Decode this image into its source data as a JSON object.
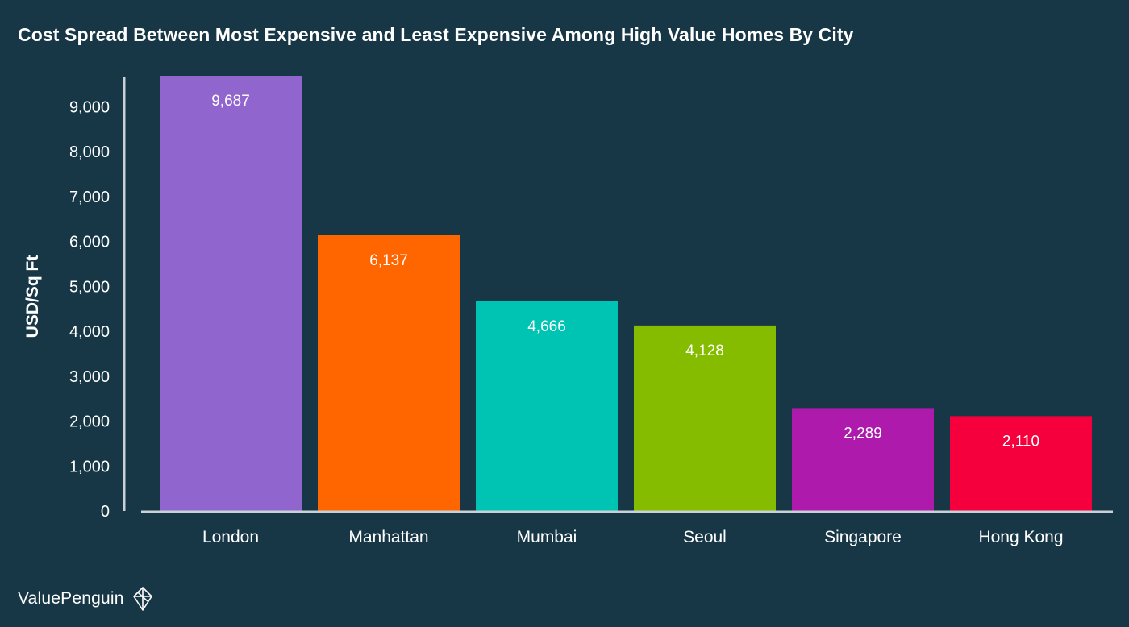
{
  "chart_data": {
    "type": "bar",
    "title": "Cost Spread Between Most Expensive and Least Expensive Among High Value Homes By City",
    "xlabel": "",
    "ylabel": "USD/Sq Ft",
    "categories": [
      "London",
      "Manhattan",
      "Mumbai",
      "Seoul",
      "Singapore",
      "Hong Kong"
    ],
    "values": [
      9687,
      6137,
      4666,
      4128,
      2289,
      2110
    ],
    "value_labels": [
      "9,687",
      "6,137",
      "4,666",
      "4,128",
      "2,289",
      "2,110"
    ],
    "colors": [
      "#9065CD",
      "#FF6600",
      "#00C4B3",
      "#85BC00",
      "#AD1AAC",
      "#F5003D"
    ],
    "ylim": [
      0,
      9687
    ],
    "yticks": [
      0,
      1000,
      2000,
      3000,
      4000,
      5000,
      6000,
      7000,
      8000,
      9000
    ],
    "ytick_labels": [
      "0",
      "1,000",
      "2,000",
      "3,000",
      "4,000",
      "5,000",
      "6,000",
      "7,000",
      "8,000",
      "9,000"
    ],
    "grid": false,
    "legend": "none"
  },
  "colors": {
    "background": "#173746",
    "axis": "#C8D1D5",
    "text": "#FFFFFF"
  },
  "brand": {
    "name": "ValuePenguin",
    "icon": "valuepenguin-logo-icon"
  }
}
